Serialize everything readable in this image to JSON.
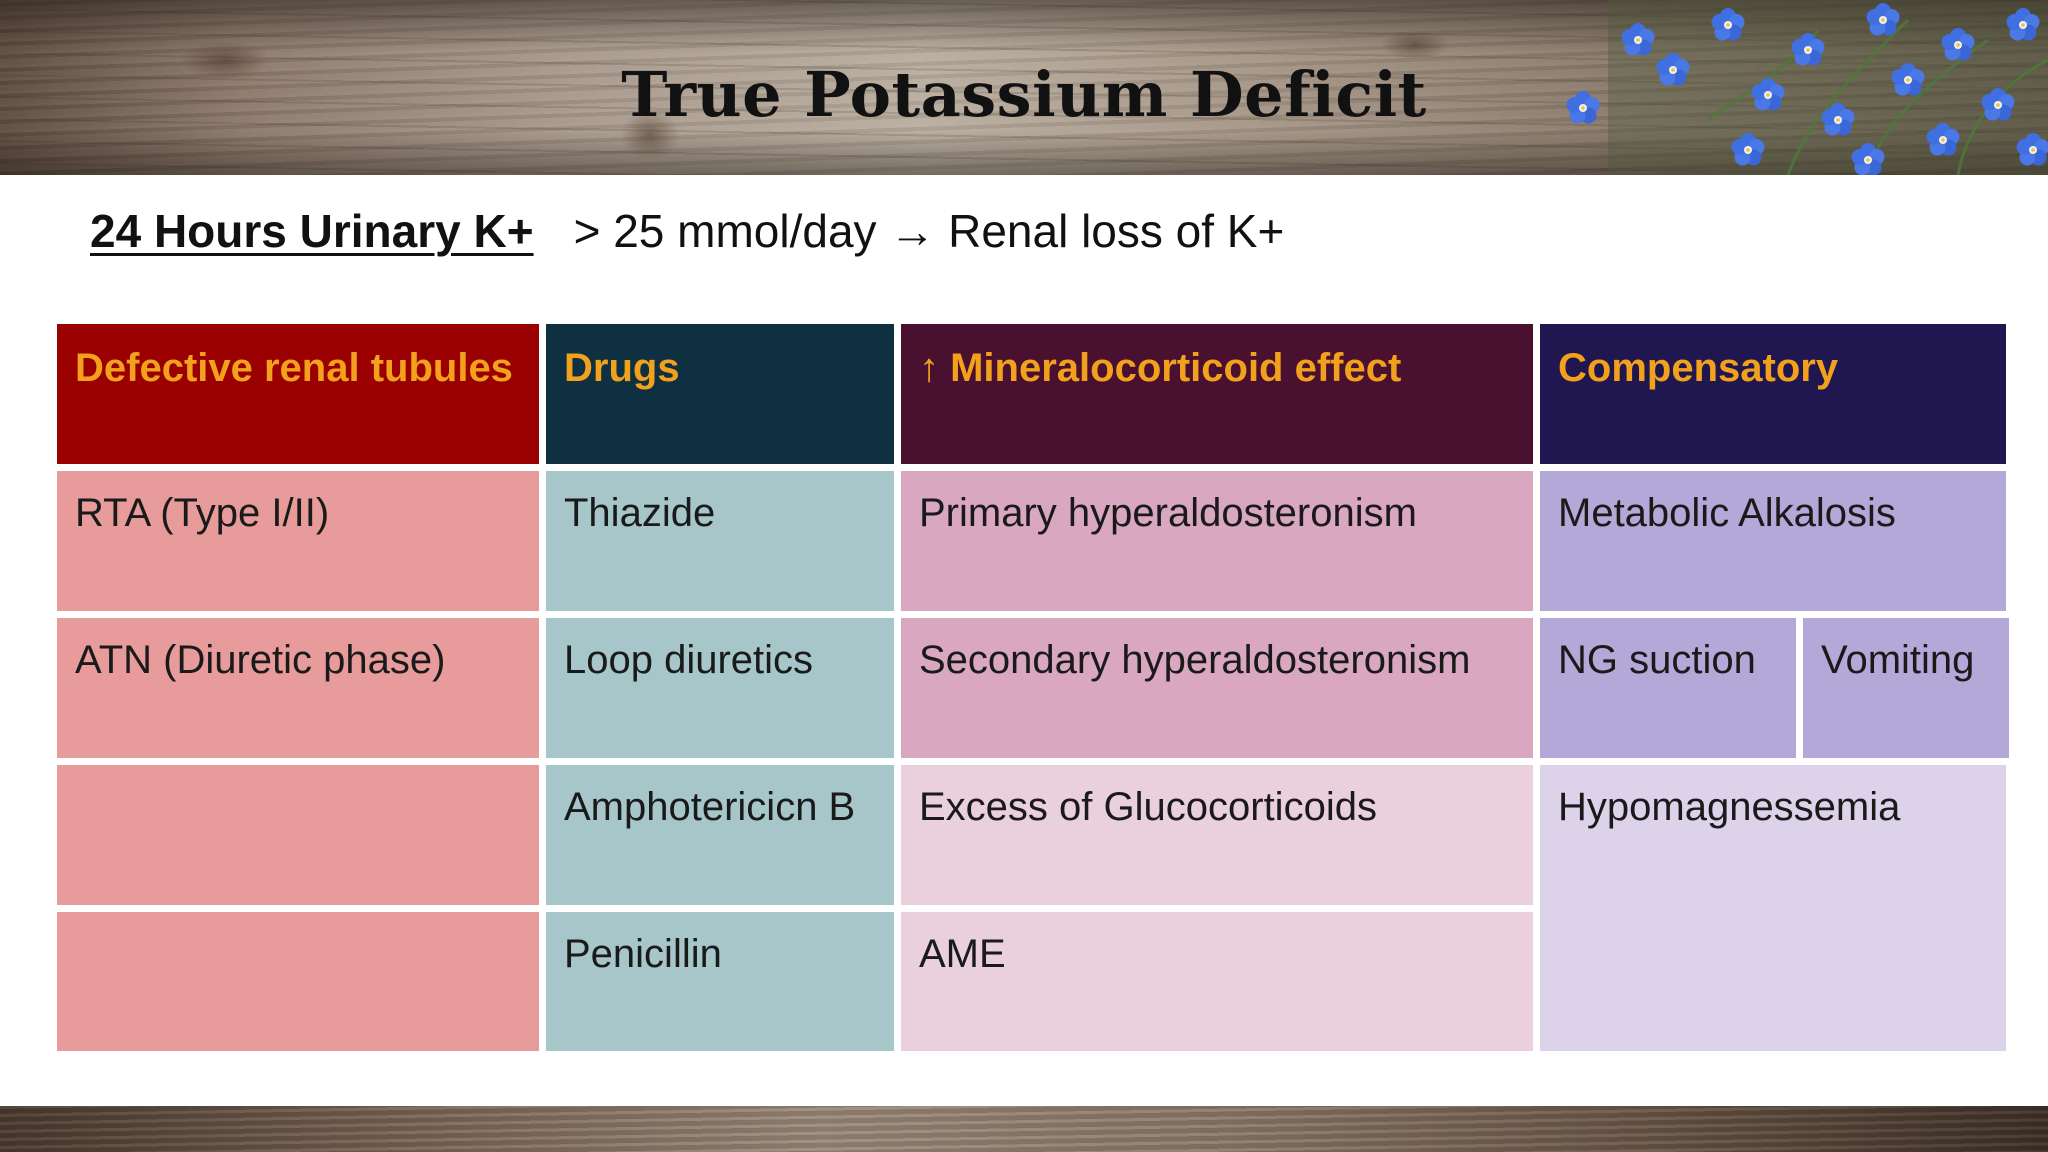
{
  "title": "True Potassium Deficit",
  "subtitle": {
    "label": "24 Hours Urinary K+",
    "rest": "> 25 mmol/day → Renal loss of K+"
  },
  "table": {
    "headers": [
      "Defective renal tubules",
      "Drugs",
      "↑ Mineralocorticoid effect",
      "Compensatory"
    ],
    "columns": {
      "renal": [
        "RTA (Type I/II)",
        "ATN (Diuretic phase)",
        "",
        ""
      ],
      "drugs": [
        "Thiazide",
        "Loop diuretics",
        "Amphotericicn B",
        "Penicillin"
      ],
      "mineralocorticoid": [
        "Primary hyperaldosteronism",
        "Secondary hyperaldosteronism",
        "Excess of Glucocorticoids",
        "AME"
      ],
      "compensatory": [
        "Metabolic Alkalosis",
        "NG suction",
        "Vomiting",
        "Hypomagnessemia"
      ]
    }
  },
  "colors": {
    "header_text": "#f2a11c",
    "renal_header": "#9a0000",
    "drugs_header": "#0e3040",
    "mineralocorticoid_header": "#4a1030",
    "compensatory_header": "#201650"
  }
}
